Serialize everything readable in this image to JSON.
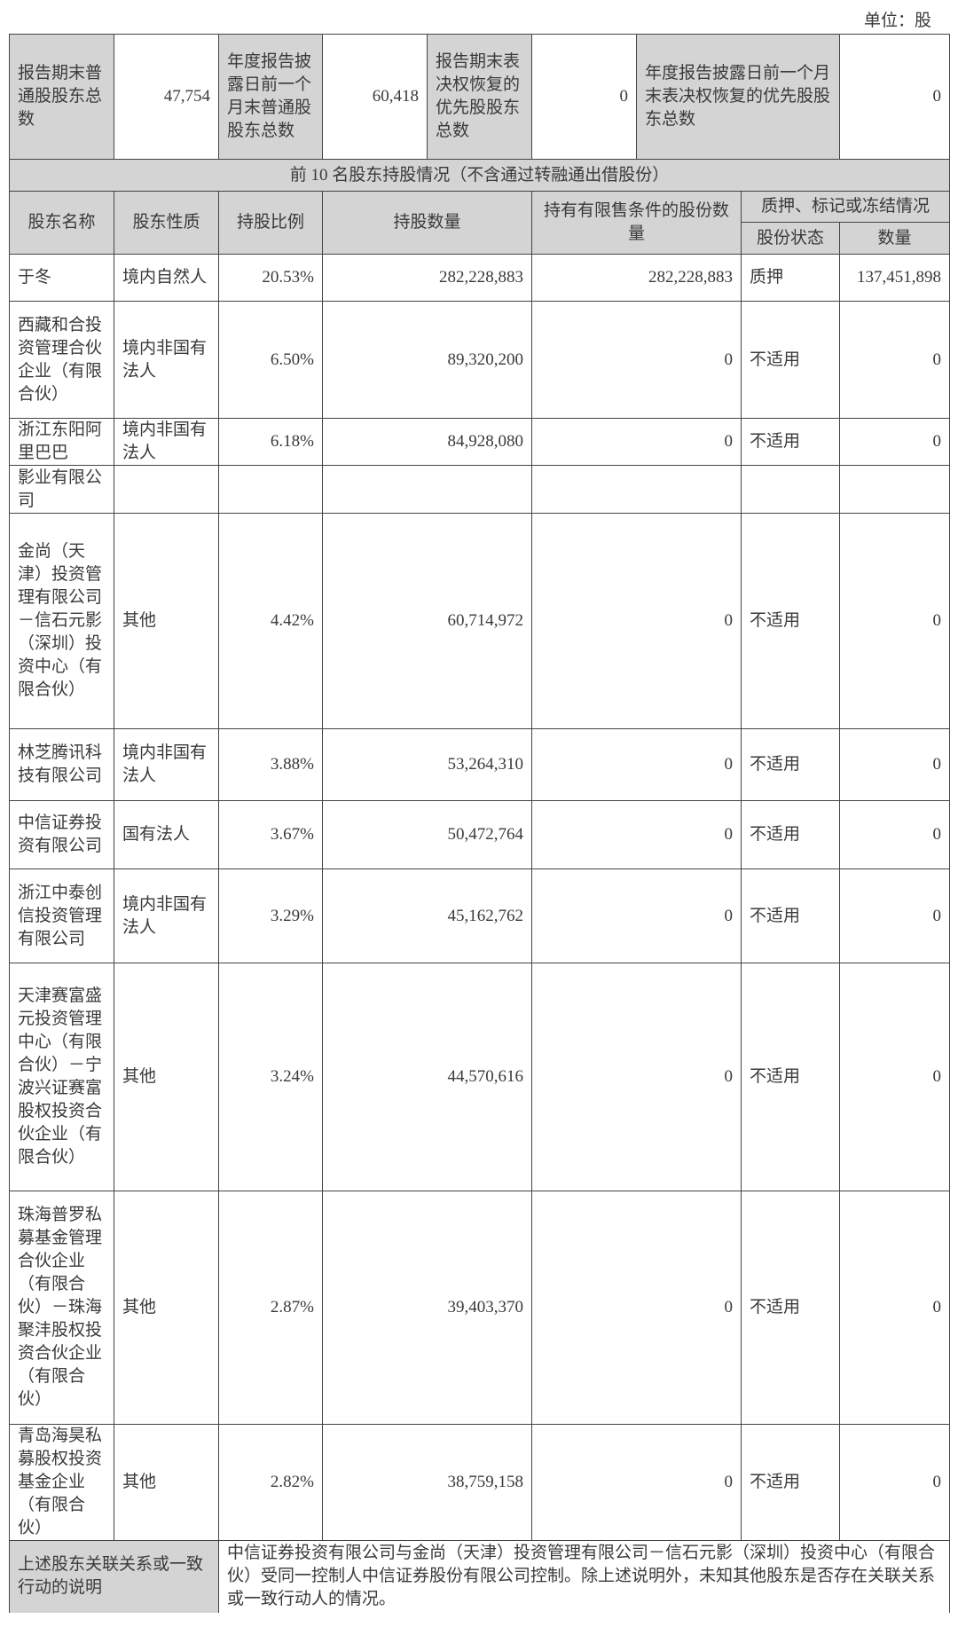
{
  "unit_label": "单位：股",
  "summary": {
    "label1": "报告期末普通股股东总数",
    "value1": "47,754",
    "label2": "年度报告披露日前一个月末普通股股东总数",
    "value2": "60,418",
    "label3": "报告期末表决权恢复的优先股股东总数",
    "value3": "0",
    "label4": "年度报告披露日前一个月末表决权恢复的优先股股东总数",
    "value4": "0"
  },
  "section_title": "前 10 名股东持股情况（不含通过转融通出借股份）",
  "headers": {
    "name": "股东名称",
    "nature": "股东性质",
    "ratio": "持股比例",
    "shares": "持股数量",
    "restricted": "持有有限售条件的股份数量",
    "pledge_group": "质押、标记或冻结情况",
    "pledge_status": "股份状态",
    "pledge_qty": "数量"
  },
  "rows": [
    {
      "name": "于冬",
      "nature": "境内自然人",
      "ratio": "20.53%",
      "shares": "282,228,883",
      "restricted": "282,228,883",
      "status": "质押",
      "qty": "137,451,898"
    },
    {
      "name": "西藏和合投资管理合伙企业（有限合伙）",
      "nature": "境内非国有法人",
      "ratio": "6.50%",
      "shares": "89,320,200",
      "restricted": "0",
      "status": "不适用",
      "qty": "0"
    },
    {
      "name": "浙江东阳阿里巴巴",
      "nature": "境内非国有法人",
      "ratio": "6.18%",
      "shares": "84,928,080",
      "restricted": "0",
      "status": "不适用",
      "qty": "0"
    },
    {
      "name": "影业有限公司",
      "nature": "",
      "ratio": "",
      "shares": "",
      "restricted": "",
      "status": "",
      "qty": ""
    },
    {
      "name": "金尚（天津）投资管理有限公司－信石元影（深圳）投资中心（有限合伙）",
      "nature": "其他",
      "ratio": "4.42%",
      "shares": "60,714,972",
      "restricted": "0",
      "status": "不适用",
      "qty": "0"
    },
    {
      "name": "林芝腾讯科技有限公司",
      "nature": "境内非国有法人",
      "ratio": "3.88%",
      "shares": "53,264,310",
      "restricted": "0",
      "status": "不适用",
      "qty": "0"
    },
    {
      "name": "中信证券投资有限公司",
      "nature": "国有法人",
      "ratio": "3.67%",
      "shares": "50,472,764",
      "restricted": "0",
      "status": "不适用",
      "qty": "0"
    },
    {
      "name": "浙江中泰创信投资管理有限公司",
      "nature": "境内非国有法人",
      "ratio": "3.29%",
      "shares": "45,162,762",
      "restricted": "0",
      "status": "不适用",
      "qty": "0"
    },
    {
      "name": "天津赛富盛元投资管理中心（有限合伙）－宁波兴证赛富股权投资合伙企业（有限合伙）",
      "nature": "其他",
      "ratio": "3.24%",
      "shares": "44,570,616",
      "restricted": "0",
      "status": "不适用",
      "qty": "0"
    },
    {
      "name": "珠海普罗私募基金管理合伙企业（有限合伙）－珠海聚沣股权投资合伙企业（有限合伙）",
      "nature": "其他",
      "ratio": "2.87%",
      "shares": "39,403,370",
      "restricted": "0",
      "status": "不适用",
      "qty": "0"
    },
    {
      "name": "青岛海昊私募股权投资基金企业（有限合伙）",
      "nature": "其他",
      "ratio": "2.82%",
      "shares": "38,759,158",
      "restricted": "0",
      "status": "不适用",
      "qty": "0"
    }
  ],
  "note": {
    "label": "上述股东关联关系或一致行动的说明",
    "text": "中信证券投资有限公司与金尚（天津）投资管理有限公司－信石元影（深圳）投资中心（有限合伙）受同一控制人中信证券股份有限公司控制。除上述说明外，未知其他股东是否存在关联关系或一致行动人的情况。"
  }
}
